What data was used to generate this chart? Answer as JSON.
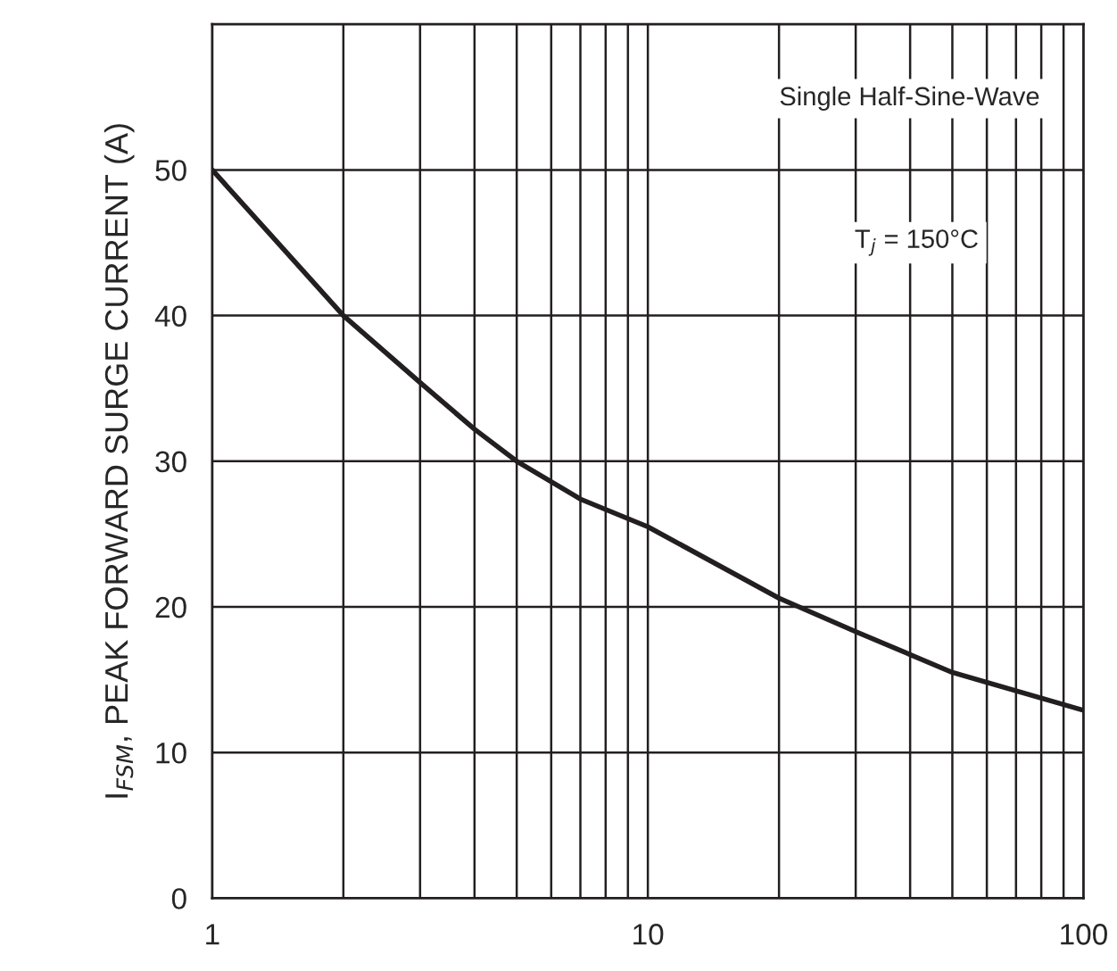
{
  "chart_data": {
    "type": "line",
    "ylabel": "I$_{FSM}$, PEAK FORWARD SURGE CURRENT (A)",
    "annotations": [
      "Single Half-Sine-Wave",
      "T$_{j}$ = 150°C"
    ],
    "x": [
      1,
      2,
      3,
      4,
      5,
      7,
      10,
      20,
      30,
      50,
      100
    ],
    "series": [
      {
        "color": "#231f20",
        "values": [
          50,
          40,
          35.4,
          32.2,
          30,
          27.4,
          25.5,
          20.6,
          18.3,
          15.5,
          12.9
        ]
      }
    ],
    "log": "x",
    "xlim": [
      1,
      100
    ],
    "xticks": [
      1,
      10,
      100
    ],
    "ylim": [
      0,
      60
    ],
    "yticks": [
      0,
      10,
      20,
      30,
      40,
      50
    ],
    "grid": true,
    "legend": false,
    "marker": "none",
    "line_style": "solid"
  }
}
